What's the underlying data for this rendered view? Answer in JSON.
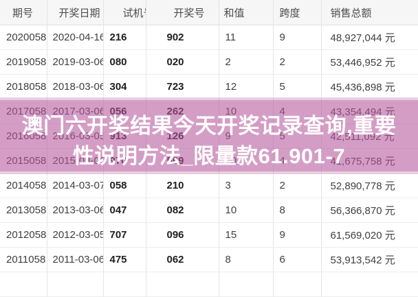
{
  "table": {
    "columns": [
      "期号",
      "开奖日期",
      "试机号",
      "开奖号",
      "和值",
      "跨度",
      "销售总额"
    ],
    "rows": [
      [
        "2020058",
        "2020-04-16",
        "216",
        "902",
        "11",
        "9",
        "48,927,044 元"
      ],
      [
        "2019058",
        "2019-03-06",
        "080",
        "020",
        "2",
        "2",
        "53,446,952 元"
      ],
      [
        "2018058",
        "2018-03-06",
        "304",
        "723",
        "12",
        "5",
        "45,436,898 元"
      ],
      [
        "2017058",
        "2017-03-06",
        "056",
        "262",
        "10",
        "4",
        "43,354,494 元"
      ],
      [
        "2016058",
        "2016-03-05",
        "913",
        "126",
        "9",
        "5",
        "42,511,092 元"
      ],
      [
        "2015058",
        "2015-03-06",
        "970",
        "569",
        "20",
        "4",
        "41,675,758 元"
      ],
      [
        "2014058",
        "2014-03-07",
        "058",
        "210",
        "3",
        "2",
        "52,890,778 元"
      ],
      [
        "2013058",
        "2013-03-06",
        "047",
        "082",
        "10",
        "8",
        "56,366,870 元"
      ],
      [
        "2012058",
        "2012-03-05",
        "707",
        "096",
        "15",
        "9",
        "61,569,020 元"
      ],
      [
        "2011058",
        "2011-03-06",
        "475",
        "062",
        "8",
        "6",
        "53,913,542 元"
      ]
    ]
  },
  "overlay": {
    "line1": "澳门六开奖结果今天开奖记录查询,重要",
    "line2": "性说明方法_限量款61.901-7",
    "accent_color": "#b4569d",
    "text_color": "#ffffff"
  }
}
